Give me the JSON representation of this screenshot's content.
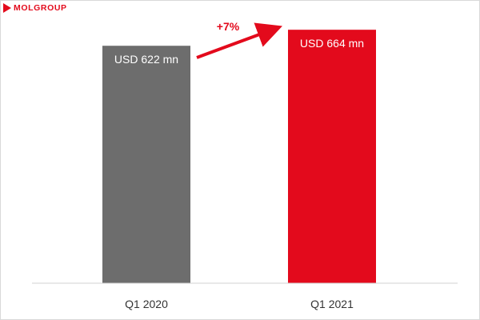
{
  "brand": {
    "name": "MOLGROUP",
    "color": "#e30a1c",
    "text_color": "#e30a1c"
  },
  "chart_data": {
    "type": "bar",
    "categories": [
      "Q1 2020",
      "Q1 2021"
    ],
    "values": [
      622,
      664
    ],
    "data_labels": [
      "USD 622 mn",
      "USD 664 mn"
    ],
    "bar_colors": [
      "#6d6d6d",
      "#e30a1c"
    ],
    "annotation": {
      "text": "+7%",
      "type": "arrow",
      "from": "Q1 2020",
      "to": "Q1 2021",
      "color": "#e30a1c"
    },
    "title": "",
    "xlabel": "",
    "ylabel": "",
    "ylim": [
      0,
      700
    ],
    "grid": false,
    "legend": "none"
  }
}
